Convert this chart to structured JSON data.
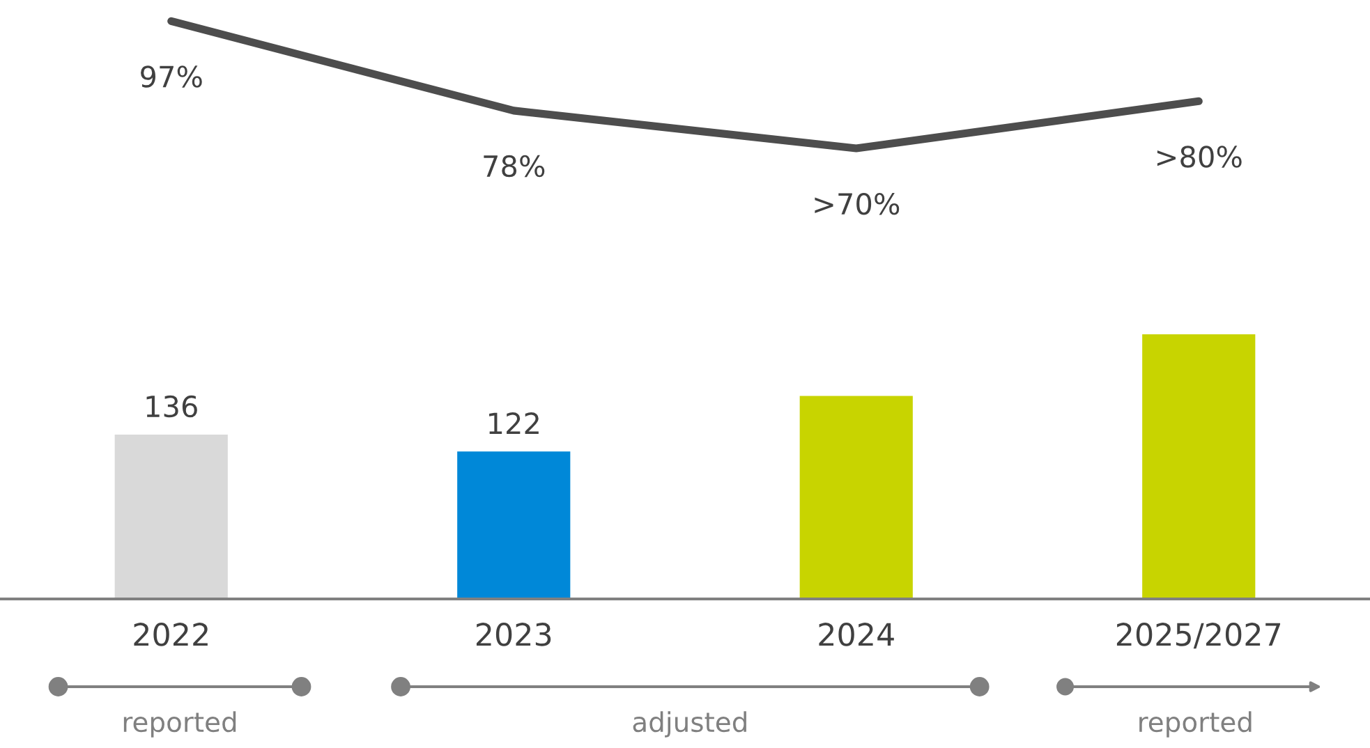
{
  "chart_data": [
    {
      "type": "line",
      "color": "#4d4d4d",
      "values": [
        97,
        78,
        70,
        80
      ],
      "value_labels": [
        "97%",
        "78%",
        ">70%",
        ">80%"
      ]
    },
    {
      "type": "bar",
      "categories": [
        "2022",
        "2023",
        "2024",
        "2025/2027"
      ],
      "colors": [
        "#d9d9d9",
        "#0088d8",
        "#c8d400",
        "#c8d400"
      ],
      "values": [
        136,
        122,
        168,
        219
      ],
      "value_labels": [
        "136",
        "122",
        null,
        null
      ],
      "annotations": [
        "reported",
        "adjusted",
        "reported"
      ]
    }
  ]
}
